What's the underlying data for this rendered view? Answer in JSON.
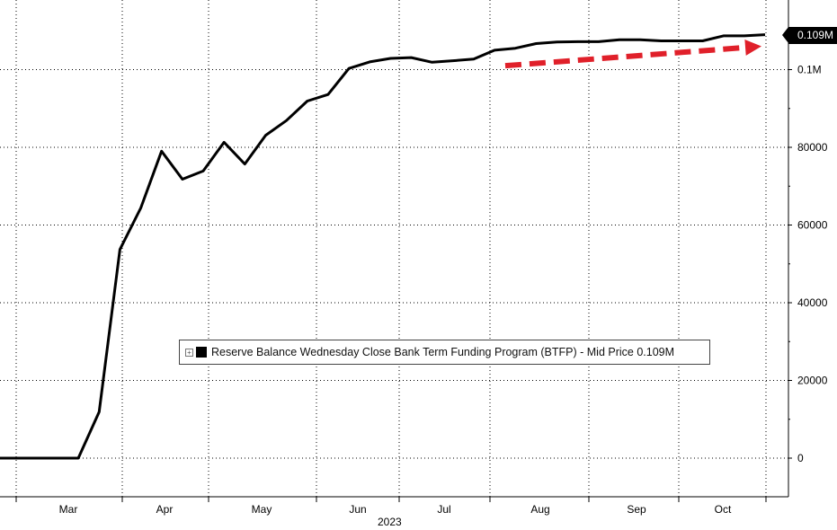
{
  "chart_data": {
    "type": "line",
    "title": "",
    "xlabel": "2023",
    "ylabel": "",
    "x_axis": {
      "type": "date",
      "ticks": [
        {
          "label": "Mar",
          "date": "2023-03-01"
        },
        {
          "label": "Apr",
          "date": "2023-04-01"
        },
        {
          "label": "May",
          "date": "2023-05-01"
        },
        {
          "label": "Jun",
          "date": "2023-06-01"
        },
        {
          "label": "Jul",
          "date": "2023-07-01"
        },
        {
          "label": "Aug",
          "date": "2023-08-01"
        },
        {
          "label": "Sep",
          "date": "2023-09-01"
        },
        {
          "label": "Oct",
          "date": "2023-10-01"
        }
      ],
      "year_label": "2023"
    },
    "y_axis": {
      "position": "right",
      "ylim": [
        -10000,
        118000
      ],
      "ticks": [
        {
          "value": 0,
          "label": "0"
        },
        {
          "value": 20000,
          "label": "20000"
        },
        {
          "value": 40000,
          "label": "40000"
        },
        {
          "value": 60000,
          "label": "60000"
        },
        {
          "value": 80000,
          "label": "80000"
        },
        {
          "value": 100000,
          "label": "0.1M"
        }
      ]
    },
    "grid": true,
    "legend": {
      "placement": "center",
      "text": "Reserve Balance Wednesday Close Bank Term Funding Program (BTFP) - Mid Price 0.109M"
    },
    "last_value_label": "0.109M",
    "series": [
      {
        "name": "Reserve Balance Wednesday Close Bank Term Funding Program (BTFP) - Mid Price",
        "color": "#000000",
        "points": [
          {
            "x": "2023-02-08",
            "y": 0
          },
          {
            "x": "2023-02-15",
            "y": 0
          },
          {
            "x": "2023-02-22",
            "y": 0
          },
          {
            "x": "2023-03-01",
            "y": 0
          },
          {
            "x": "2023-03-08",
            "y": 0
          },
          {
            "x": "2023-03-15",
            "y": 11900
          },
          {
            "x": "2023-03-22",
            "y": 53700
          },
          {
            "x": "2023-03-29",
            "y": 64400
          },
          {
            "x": "2023-04-05",
            "y": 79000
          },
          {
            "x": "2023-04-12",
            "y": 71800
          },
          {
            "x": "2023-04-19",
            "y": 73900
          },
          {
            "x": "2023-04-26",
            "y": 81300
          },
          {
            "x": "2023-05-03",
            "y": 75700
          },
          {
            "x": "2023-05-10",
            "y": 83100
          },
          {
            "x": "2023-05-17",
            "y": 86900
          },
          {
            "x": "2023-05-24",
            "y": 91900
          },
          {
            "x": "2023-05-31",
            "y": 93600
          },
          {
            "x": "2023-06-07",
            "y": 100300
          },
          {
            "x": "2023-06-14",
            "y": 102000
          },
          {
            "x": "2023-06-21",
            "y": 102900
          },
          {
            "x": "2023-06-28",
            "y": 103100
          },
          {
            "x": "2023-07-05",
            "y": 101900
          },
          {
            "x": "2023-07-12",
            "y": 102300
          },
          {
            "x": "2023-07-19",
            "y": 102700
          },
          {
            "x": "2023-07-26",
            "y": 105000
          },
          {
            "x": "2023-08-02",
            "y": 105500
          },
          {
            "x": "2023-08-09",
            "y": 106700
          },
          {
            "x": "2023-08-16",
            "y": 107100
          },
          {
            "x": "2023-08-23",
            "y": 107200
          },
          {
            "x": "2023-08-30",
            "y": 107200
          },
          {
            "x": "2023-09-06",
            "y": 107700
          },
          {
            "x": "2023-09-13",
            "y": 107700
          },
          {
            "x": "2023-09-20",
            "y": 107400
          },
          {
            "x": "2023-09-27",
            "y": 107400
          },
          {
            "x": "2023-10-04",
            "y": 107400
          },
          {
            "x": "2023-10-11",
            "y": 108700
          },
          {
            "x": "2023-10-18",
            "y": 108700
          },
          {
            "x": "2023-10-25",
            "y": 109000
          }
        ]
      }
    ],
    "annotations": [
      {
        "type": "dashed-arrow",
        "color": "#e0202a",
        "from": {
          "x": "2023-07-26",
          "y": 101000
        },
        "to": {
          "x": "2023-10-25",
          "y": 106000
        }
      }
    ]
  }
}
